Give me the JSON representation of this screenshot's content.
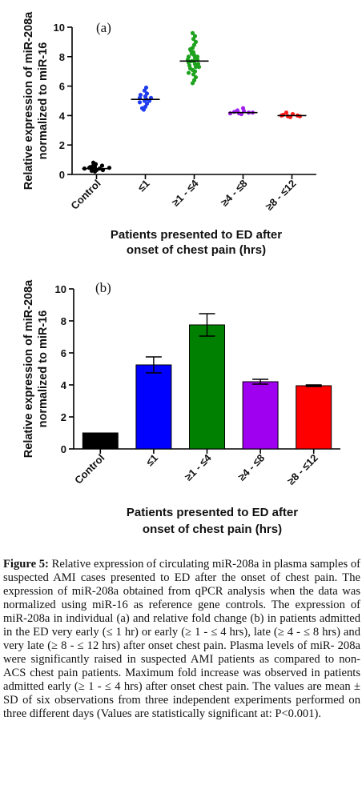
{
  "chart_data": [
    {
      "type": "scatter",
      "panel_label": "(a)",
      "ylabel": [
        "Relative expression of miR-208a",
        "normalized to miR-16"
      ],
      "xlabel": [
        "Patients presented to ED after",
        "onset of chest pain (hrs)"
      ],
      "ylim": [
        0,
        10
      ],
      "yticks": [
        0,
        2,
        4,
        6,
        8,
        10
      ],
      "categories": [
        "Control",
        "≤1",
        "≥1 - ≤4",
        "≥4 - ≤8",
        "≥8 - ≤12"
      ],
      "colors": [
        "#000000",
        "#1f3df0",
        "#1fa31f",
        "#a020f0",
        "#ff1a1a"
      ],
      "means": [
        0.4,
        5.1,
        7.7,
        4.2,
        4.0
      ],
      "points": [
        [
          0.2,
          0.3,
          0.35,
          0.4,
          0.45,
          0.5,
          0.55,
          0.6,
          0.7,
          0.8,
          0.3,
          0.4,
          0.5,
          0.25,
          0.45
        ],
        [
          4.4,
          4.6,
          4.8,
          5.0,
          5.1,
          5.2,
          5.3,
          5.5,
          5.7,
          5.9,
          4.9,
          5.0,
          5.2,
          5.4,
          4.5
        ],
        [
          6.2,
          6.4,
          6.6,
          6.8,
          7.0,
          7.1,
          7.2,
          7.3,
          7.4,
          7.5,
          7.6,
          7.7,
          7.7,
          7.8,
          7.9,
          8.0,
          8.1,
          8.2,
          8.3,
          8.4,
          8.6,
          8.8,
          9.0,
          9.2,
          9.4,
          9.6,
          7.5,
          7.8,
          8.0,
          7.3,
          6.9,
          8.5
        ],
        [
          4.1,
          4.15,
          4.2,
          4.25,
          4.3,
          4.35,
          4.5,
          4.2,
          4.15
        ],
        [
          3.9,
          3.95,
          4.0,
          4.05,
          4.1,
          4.2,
          3.95,
          4.0
        ]
      ]
    },
    {
      "type": "bar",
      "panel_label": "(b)",
      "ylabel": [
        "Relative expression of miR-208a",
        "normalized to miR-16"
      ],
      "xlabel": [
        "Patients presented to ED after",
        "onset of chest pain (hrs)"
      ],
      "ylim": [
        0,
        10
      ],
      "yticks": [
        0,
        2,
        4,
        6,
        8,
        10
      ],
      "categories": [
        "Control",
        "≤1",
        "≥1 - ≤4",
        "≥4 - ≤8",
        "≥8 - ≤12"
      ],
      "colors": [
        "#000000",
        "#0000ff",
        "#008000",
        "#a000f0",
        "#ff0000"
      ],
      "values": [
        1.0,
        5.25,
        7.75,
        4.2,
        3.95
      ],
      "errors": [
        0.0,
        0.5,
        0.7,
        0.15,
        0.05
      ]
    }
  ],
  "caption": {
    "label": "Figure 5:",
    "text": " Relative expression of circulating miR-208a in plasma samples of suspected AMI cases presented to ED after the onset of chest pain. The expression of miR-208a obtained from qPCR analysis when the data was normalized using miR-16 as reference gene controls. The expression of miR-208a in individual (a) and relative fold change (b) in patients admitted in the ED very early (≤ 1 hr) or early (≥ 1 - ≤ 4 hrs), late (≥ 4 - ≤ 8 hrs) and very late (≥ 8 - ≤ 12 hrs) after onset chest pain. Plasma levels of miR- 208a were significantly raised in suspected AMI patients as compared to non-ACS chest pain patients. Maximum fold increase was observed in patients admitted early (≥ 1 - ≤ 4 hrs) after onset chest pain. The values are mean ± SD of six observations from three independent experiments performed on three different days (Values are statistically significant at: P<0.001)."
  }
}
